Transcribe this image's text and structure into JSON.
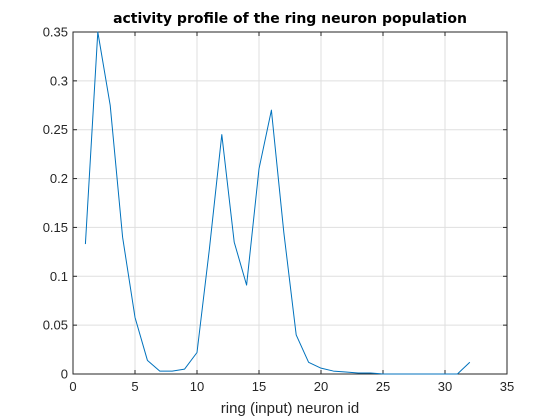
{
  "chart_data": {
    "type": "line",
    "title": "activity profile of the ring neuron population",
    "xlabel": "ring (input) neuron id",
    "ylabel": "",
    "xlim": [
      0,
      35
    ],
    "ylim": [
      0,
      0.35
    ],
    "xticks": [
      0,
      5,
      10,
      15,
      20,
      25,
      30,
      35
    ],
    "yticks": [
      0,
      0.05,
      0.1,
      0.15,
      0.2,
      0.25,
      0.3,
      0.35
    ],
    "xtick_labels": [
      "0",
      "5",
      "10",
      "15",
      "20",
      "25",
      "30",
      "35"
    ],
    "ytick_labels": [
      "0",
      "0.05",
      "0.1",
      "0.15",
      "0.2",
      "0.25",
      "0.3",
      "0.35"
    ],
    "grid": true,
    "line_color": "#0072bd",
    "series": [
      {
        "x": [
          1,
          2,
          3,
          4,
          5,
          6,
          7,
          8,
          9,
          10,
          11,
          12,
          13,
          14,
          15,
          16,
          17,
          18,
          19,
          20,
          21,
          22,
          23,
          24,
          25,
          26,
          27,
          28,
          29,
          30,
          31,
          32
        ],
        "values": [
          0.133,
          0.35,
          0.275,
          0.14,
          0.058,
          0.014,
          0.003,
          0.003,
          0.005,
          0.022,
          0.128,
          0.245,
          0.135,
          0.091,
          0.21,
          0.27,
          0.145,
          0.04,
          0.012,
          0.006,
          0.003,
          0.002,
          0.001,
          0.001,
          0.0,
          0.0,
          0.0,
          0.0,
          0.0,
          0.0,
          0.0,
          0.012
        ]
      }
    ]
  }
}
